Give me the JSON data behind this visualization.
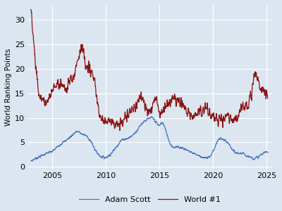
{
  "title": "",
  "ylabel": "World Ranking Points",
  "xlabel": "",
  "background_color": "#dce6f0",
  "fig_background": "#dce6f0",
  "adam_scott_color": "#4472c4",
  "world1_color": "#8b1414",
  "xlim": [
    2002.7,
    2025.5
  ],
  "ylim": [
    -0.5,
    33
  ],
  "yticks": [
    0,
    5,
    10,
    15,
    20,
    25,
    30
  ],
  "xticks": [
    2005,
    2010,
    2015,
    2020,
    2025
  ],
  "legend_labels": [
    "Adam Scott",
    "World #1"
  ],
  "adam_scott_base": {
    "years": [
      2003.0,
      2003.5,
      2004.0,
      2004.5,
      2005.0,
      2005.5,
      2006.0,
      2006.5,
      2007.0,
      2007.3,
      2007.7,
      2008.0,
      2008.5,
      2009.0,
      2009.5,
      2010.0,
      2010.5,
      2011.0,
      2011.5,
      2012.0,
      2012.5,
      2013.0,
      2013.5,
      2014.0,
      2014.3,
      2014.7,
      2015.0,
      2015.2,
      2015.5,
      2016.0,
      2016.5,
      2017.0,
      2017.5,
      2018.0,
      2018.5,
      2019.0,
      2019.3,
      2019.7,
      2020.0,
      2020.5,
      2021.0,
      2021.5,
      2022.0,
      2022.5,
      2023.0,
      2023.5,
      2024.0,
      2024.5,
      2025.0
    ],
    "values": [
      1.2,
      1.8,
      2.3,
      2.8,
      3.2,
      4.2,
      5.0,
      5.8,
      6.8,
      7.2,
      6.8,
      6.5,
      5.5,
      3.5,
      2.2,
      2.0,
      2.8,
      4.2,
      5.5,
      5.8,
      6.5,
      7.8,
      9.2,
      9.8,
      10.0,
      9.0,
      8.5,
      9.0,
      8.0,
      4.8,
      4.0,
      4.0,
      3.5,
      3.0,
      2.5,
      2.0,
      1.8,
      2.2,
      3.2,
      5.5,
      5.5,
      4.5,
      3.0,
      2.8,
      2.5,
      2.0,
      1.8,
      2.5,
      3.0
    ]
  },
  "world1_base": {
    "years": [
      2003.0,
      2003.1,
      2003.2,
      2003.4,
      2003.6,
      2003.8,
      2004.0,
      2004.5,
      2005.0,
      2005.5,
      2006.0,
      2006.3,
      2006.6,
      2007.0,
      2007.2,
      2007.4,
      2007.6,
      2007.8,
      2008.0,
      2008.5,
      2009.0,
      2009.5,
      2010.0,
      2010.3,
      2010.6,
      2011.0,
      2011.5,
      2012.0,
      2012.5,
      2013.0,
      2013.3,
      2013.6,
      2014.0,
      2014.3,
      2014.6,
      2015.0,
      2015.3,
      2015.6,
      2016.0,
      2016.3,
      2016.6,
      2017.0,
      2017.3,
      2017.6,
      2018.0,
      2018.3,
      2018.6,
      2019.0,
      2019.3,
      2019.6,
      2020.0,
      2020.3,
      2020.6,
      2021.0,
      2021.3,
      2021.6,
      2022.0,
      2022.3,
      2022.6,
      2023.0,
      2023.3,
      2023.6,
      2023.9,
      2024.1,
      2024.3,
      2024.5,
      2024.7,
      2025.0
    ],
    "values": [
      32.0,
      30.0,
      27.0,
      22.0,
      17.0,
      14.5,
      14.0,
      13.0,
      15.5,
      17.0,
      16.5,
      16.0,
      17.5,
      18.5,
      20.5,
      22.5,
      23.5,
      24.5,
      21.5,
      20.0,
      16.0,
      10.0,
      9.8,
      9.5,
      9.2,
      8.5,
      9.0,
      10.5,
      12.0,
      13.5,
      14.0,
      13.0,
      11.5,
      12.0,
      14.5,
      11.0,
      11.5,
      12.5,
      13.5,
      14.0,
      13.5,
      13.0,
      12.5,
      11.5,
      10.5,
      10.5,
      11.0,
      11.5,
      12.0,
      11.5,
      10.5,
      10.0,
      9.5,
      9.8,
      10.2,
      9.8,
      9.5,
      10.0,
      12.0,
      12.5,
      13.0,
      15.0,
      18.5,
      18.0,
      17.0,
      16.0,
      15.5,
      14.5
    ]
  }
}
